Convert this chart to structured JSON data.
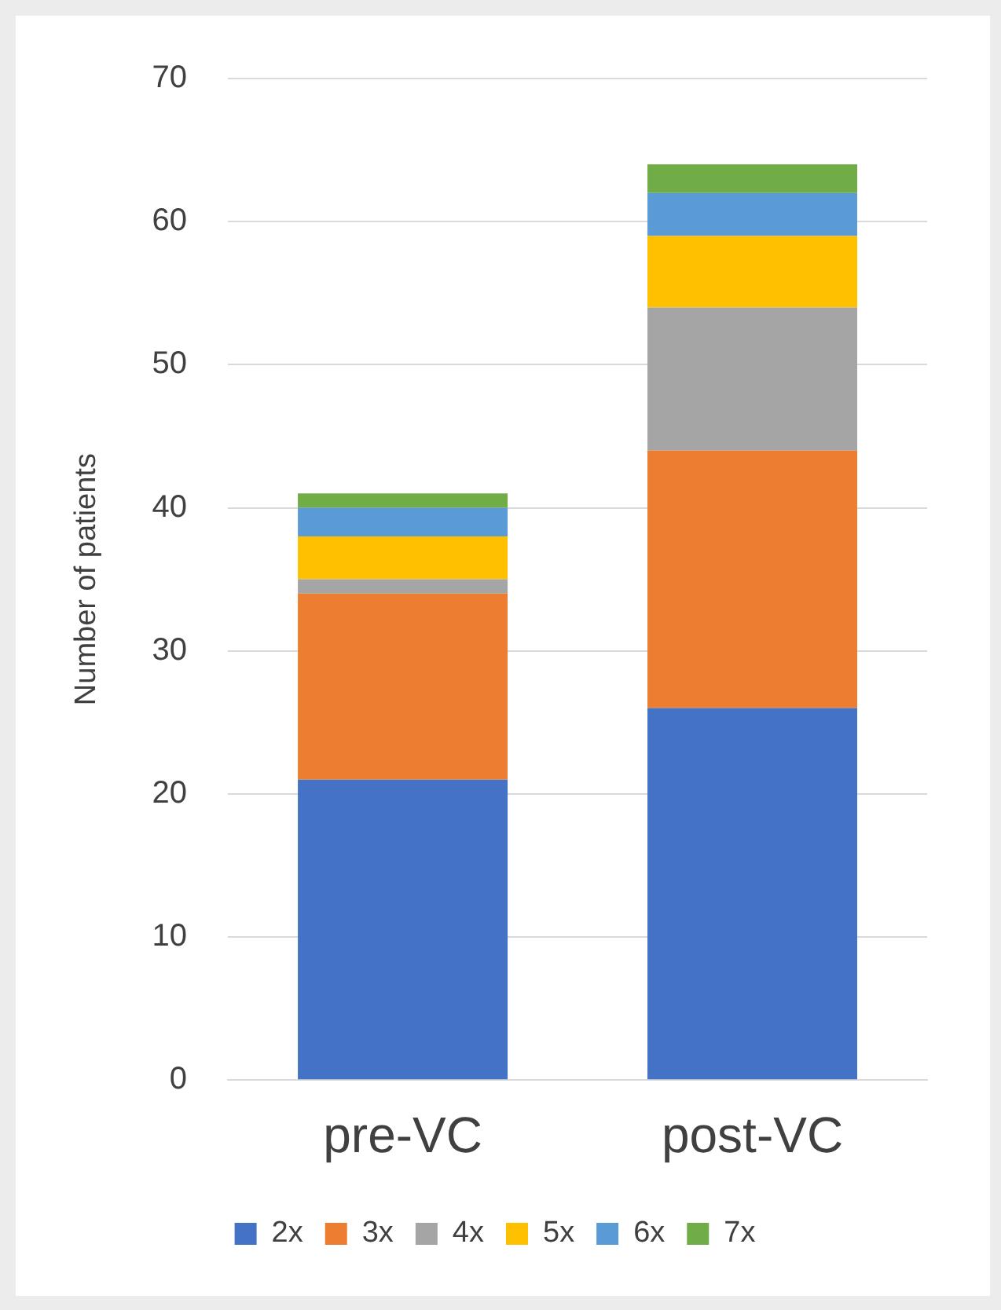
{
  "chart_data": {
    "type": "bar",
    "stacked": true,
    "ylabel": "Number of patients",
    "categories": [
      "pre-VC",
      "post-VC"
    ],
    "series": [
      {
        "name": "2x",
        "color": "#4472c4",
        "values": [
          21,
          26
        ]
      },
      {
        "name": "3x",
        "color": "#ed7d31",
        "values": [
          13,
          18
        ]
      },
      {
        "name": "4x",
        "color": "#a5a5a5",
        "values": [
          1,
          10
        ]
      },
      {
        "name": "5x",
        "color": "#ffc000",
        "values": [
          3,
          5
        ]
      },
      {
        "name": "6x",
        "color": "#5b9bd5",
        "values": [
          2,
          3
        ]
      },
      {
        "name": "7x",
        "color": "#70ad47",
        "values": [
          1,
          2
        ]
      }
    ],
    "ylim": [
      0,
      70
    ],
    "yticks": [
      0,
      10,
      20,
      30,
      40,
      50,
      60,
      70
    ],
    "grid": "y",
    "legend": "bottom"
  }
}
